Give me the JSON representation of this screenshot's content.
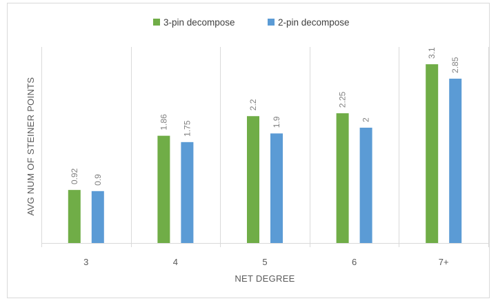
{
  "chart_data": {
    "type": "bar",
    "title": "",
    "xlabel": "NET DEGREE",
    "ylabel": "AVG NUM OF STEINER POINTS",
    "categories": [
      "3",
      "4",
      "5",
      "6",
      "7+"
    ],
    "series": [
      {
        "name": "3-pin decompose",
        "color": "#70ad47",
        "values": [
          0.92,
          1.86,
          2.2,
          2.25,
          3.1
        ]
      },
      {
        "name": "2-pin decompose",
        "color": "#5b9bd5",
        "values": [
          0.9,
          1.75,
          1.9,
          2,
          2.85
        ]
      }
    ],
    "data_labels": [
      [
        "0.92",
        "1.86",
        "2.2",
        "2.25",
        "3.1"
      ],
      [
        "0.9",
        "1.75",
        "1.9",
        "2",
        "2.85"
      ]
    ],
    "ylim": [
      0,
      3.4
    ],
    "grid": "vertical category separators",
    "legend_position": "top",
    "y_axis_tick_labels_shown": false
  }
}
